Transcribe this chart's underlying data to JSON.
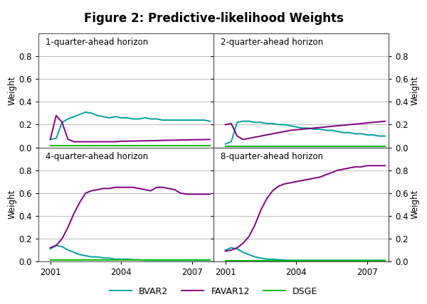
{
  "title": "Figure 2: Predictive-likelihood Weights",
  "title_fontsize": 12,
  "title_fontweight": "bold",
  "subplot_titles": [
    "1-quarter-ahead horizon",
    "2-quarter-ahead horizon",
    "4-quarter-ahead horizon",
    "8-quarter-ahead horizon"
  ],
  "ylabel": "Weight",
  "xlim": [
    2000.5,
    2007.9
  ],
  "ylim": [
    0.0,
    1.0
  ],
  "yticks": [
    0.0,
    0.2,
    0.4,
    0.6,
    0.8
  ],
  "xticks": [
    2001,
    2004,
    2007
  ],
  "colors": {
    "BVAR2": "#00a0a0",
    "FAVAR12": "#800080",
    "DSGE": "#00bb00"
  },
  "legend_labels": [
    "BVAR2",
    "FAVAR12",
    "DSGE"
  ],
  "background_color": "#ffffff",
  "grid_color": "#bbbbbb",
  "line_width": 1.4
}
